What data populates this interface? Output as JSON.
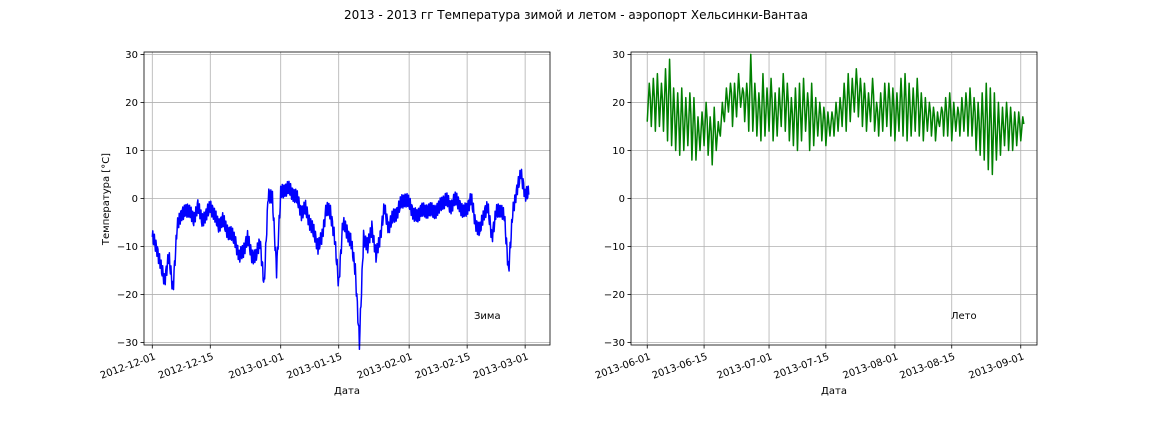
{
  "figure_title": "2013 - 2013 гг Температура зимой и летом - аэропорт Хельсинки-Вантаа",
  "chart_data": [
    {
      "type": "line",
      "title": "",
      "xlabel": "Дата",
      "ylabel": "Температура [°C]",
      "annotation": "Зима",
      "color": "#0000ff",
      "grid": true,
      "legend": "none",
      "xlim": [
        "2012-11-29",
        "2013-03-07"
      ],
      "ylim": [
        -30.5,
        30.5
      ],
      "xticks": [
        "2012-12-01",
        "2012-12-15",
        "2013-01-01",
        "2013-01-15",
        "2013-02-01",
        "2013-02-15",
        "2013-03-01"
      ],
      "yticks": [
        -30,
        -20,
        -10,
        0,
        10,
        20,
        30
      ],
      "series": [
        {
          "x": [
            "2012-12-01",
            "2012-12-02",
            "2012-12-03",
            "2012-12-04",
            "2012-12-05",
            "2012-12-06",
            "2012-12-07",
            "2012-12-08",
            "2012-12-09",
            "2012-12-10",
            "2012-12-11",
            "2012-12-12",
            "2012-12-13",
            "2012-12-14",
            "2012-12-15",
            "2012-12-16",
            "2012-12-17",
            "2012-12-18",
            "2012-12-19",
            "2012-12-20",
            "2012-12-21",
            "2012-12-22",
            "2012-12-23",
            "2012-12-24",
            "2012-12-25",
            "2012-12-26",
            "2012-12-27",
            "2012-12-28",
            "2012-12-29",
            "2012-12-30",
            "2012-12-31",
            "2013-01-01",
            "2013-01-02",
            "2013-01-03",
            "2013-01-04",
            "2013-01-05",
            "2013-01-06",
            "2013-01-07",
            "2013-01-08",
            "2013-01-09",
            "2013-01-10",
            "2013-01-11",
            "2013-01-12",
            "2013-01-13",
            "2013-01-14",
            "2013-01-15",
            "2013-01-16",
            "2013-01-17",
            "2013-01-18",
            "2013-01-19",
            "2013-01-20",
            "2013-01-21",
            "2013-01-22",
            "2013-01-23",
            "2013-01-24",
            "2013-01-25",
            "2013-01-26",
            "2013-01-27",
            "2013-01-28",
            "2013-01-29",
            "2013-01-30",
            "2013-01-31",
            "2013-02-01",
            "2013-02-02",
            "2013-02-03",
            "2013-02-04",
            "2013-02-05",
            "2013-02-06",
            "2013-02-07",
            "2013-02-08",
            "2013-02-09",
            "2013-02-10",
            "2013-02-11",
            "2013-02-12",
            "2013-02-13",
            "2013-02-14",
            "2013-02-15",
            "2013-02-16",
            "2013-02-17",
            "2013-02-18",
            "2013-02-19",
            "2013-02-20",
            "2013-02-21",
            "2013-02-22",
            "2013-02-23",
            "2013-02-24",
            "2013-02-25",
            "2013-02-26",
            "2013-02-27",
            "2013-02-28",
            "2013-03-01"
          ],
          "values": [
            -8,
            -10,
            -14,
            -17,
            -12,
            -19,
            -6,
            -3,
            -3,
            -2,
            -5,
            -1,
            -5,
            -3,
            -2,
            -3,
            -6,
            -4,
            -7,
            -7,
            -9,
            -12,
            -11,
            -8,
            -12,
            -12,
            -9,
            -18,
            1,
            0,
            -15,
            1,
            2,
            2,
            1,
            0,
            -3,
            -2,
            -5,
            -7,
            -10,
            -8,
            -2,
            -3,
            -8,
            -18,
            -5,
            -7,
            -9,
            -15,
            -30,
            -8,
            -10,
            -6,
            -12,
            -8,
            -2,
            -6,
            -4,
            -3,
            -1,
            0,
            -1,
            -3,
            -4,
            -2,
            -3,
            -2,
            -3,
            -2,
            -1,
            0,
            -2,
            0,
            -1,
            -3,
            -2,
            0,
            -5,
            -7,
            -3,
            -2,
            -8,
            -3,
            -2,
            -4,
            -15,
            -3,
            2,
            5,
            1
          ]
        }
      ]
    },
    {
      "type": "line",
      "title": "",
      "xlabel": "Дата",
      "ylabel": "",
      "annotation": "Лето",
      "color": "#008000",
      "grid": true,
      "legend": "none",
      "xlim": [
        "2013-05-28",
        "2013-09-05"
      ],
      "ylim": [
        -30.5,
        30.5
      ],
      "xticks": [
        "2013-06-01",
        "2013-06-15",
        "2013-07-01",
        "2013-07-15",
        "2013-08-01",
        "2013-08-15",
        "2013-09-01"
      ],
      "yticks": [
        -30,
        -20,
        -10,
        0,
        10,
        20,
        30
      ],
      "series": [
        {
          "x": [
            "2013-06-01",
            "2013-06-02",
            "2013-06-03",
            "2013-06-04",
            "2013-06-05",
            "2013-06-06",
            "2013-06-07",
            "2013-06-08",
            "2013-06-09",
            "2013-06-10",
            "2013-06-11",
            "2013-06-12",
            "2013-06-13",
            "2013-06-14",
            "2013-06-15",
            "2013-06-16",
            "2013-06-17",
            "2013-06-18",
            "2013-06-19",
            "2013-06-20",
            "2013-06-21",
            "2013-06-22",
            "2013-06-23",
            "2013-06-24",
            "2013-06-25",
            "2013-06-26",
            "2013-06-27",
            "2013-06-28",
            "2013-06-29",
            "2013-06-30",
            "2013-07-01",
            "2013-07-02",
            "2013-07-03",
            "2013-07-04",
            "2013-07-05",
            "2013-07-06",
            "2013-07-07",
            "2013-07-08",
            "2013-07-09",
            "2013-07-10",
            "2013-07-11",
            "2013-07-12",
            "2013-07-13",
            "2013-07-14",
            "2013-07-15",
            "2013-07-16",
            "2013-07-17",
            "2013-07-18",
            "2013-07-19",
            "2013-07-20",
            "2013-07-21",
            "2013-07-22",
            "2013-07-23",
            "2013-07-24",
            "2013-07-25",
            "2013-07-26",
            "2013-07-27",
            "2013-07-28",
            "2013-07-29",
            "2013-07-30",
            "2013-07-31",
            "2013-08-01",
            "2013-08-02",
            "2013-08-03",
            "2013-08-04",
            "2013-08-05",
            "2013-08-06",
            "2013-08-07",
            "2013-08-08",
            "2013-08-09",
            "2013-08-10",
            "2013-08-11",
            "2013-08-12",
            "2013-08-13",
            "2013-08-14",
            "2013-08-15",
            "2013-08-16",
            "2013-08-17",
            "2013-08-18",
            "2013-08-19",
            "2013-08-20",
            "2013-08-21",
            "2013-08-22",
            "2013-08-23",
            "2013-08-24",
            "2013-08-25",
            "2013-08-26",
            "2013-08-27",
            "2013-08-28",
            "2013-08-29",
            "2013-08-30",
            "2013-08-31",
            "2013-09-01"
          ],
          "min": [
            16,
            15,
            14,
            15,
            14,
            12,
            11,
            10,
            9,
            10,
            11,
            8,
            8,
            10,
            11,
            9,
            7,
            10,
            13,
            16,
            18,
            15,
            17,
            19,
            16,
            14,
            14,
            13,
            12,
            13,
            14,
            12,
            13,
            15,
            14,
            12,
            11,
            10,
            12,
            14,
            10,
            11,
            13,
            12,
            11,
            13,
            13,
            14,
            15,
            14,
            16,
            18,
            17,
            15,
            14,
            16,
            14,
            13,
            14,
            15,
            13,
            12,
            14,
            13,
            12,
            13,
            14,
            13,
            12,
            14,
            13,
            12,
            15,
            13,
            13,
            12,
            14,
            13,
            14,
            13,
            13,
            10,
            9,
            8,
            6,
            5,
            8,
            9,
            11,
            10,
            10,
            11,
            12
          ],
          "max": [
            24,
            25,
            26,
            24,
            27,
            29,
            23,
            22,
            23,
            21,
            22,
            21,
            17,
            18,
            20,
            17,
            19,
            16,
            20,
            23,
            24,
            24,
            26,
            23,
            24,
            30,
            24,
            22,
            26,
            23,
            25,
            22,
            23,
            26,
            24,
            21,
            23,
            24,
            25,
            22,
            24,
            21,
            20,
            19,
            18,
            18,
            20,
            21,
            24,
            26,
            25,
            27,
            25,
            24,
            22,
            25,
            20,
            22,
            24,
            24,
            23,
            22,
            25,
            26,
            24,
            23,
            25,
            22,
            21,
            20,
            19,
            18,
            19,
            21,
            22,
            20,
            19,
            21,
            22,
            23,
            21,
            20,
            22,
            24,
            23,
            22,
            20,
            19,
            20,
            19,
            18,
            18,
            17
          ]
        }
      ]
    }
  ]
}
